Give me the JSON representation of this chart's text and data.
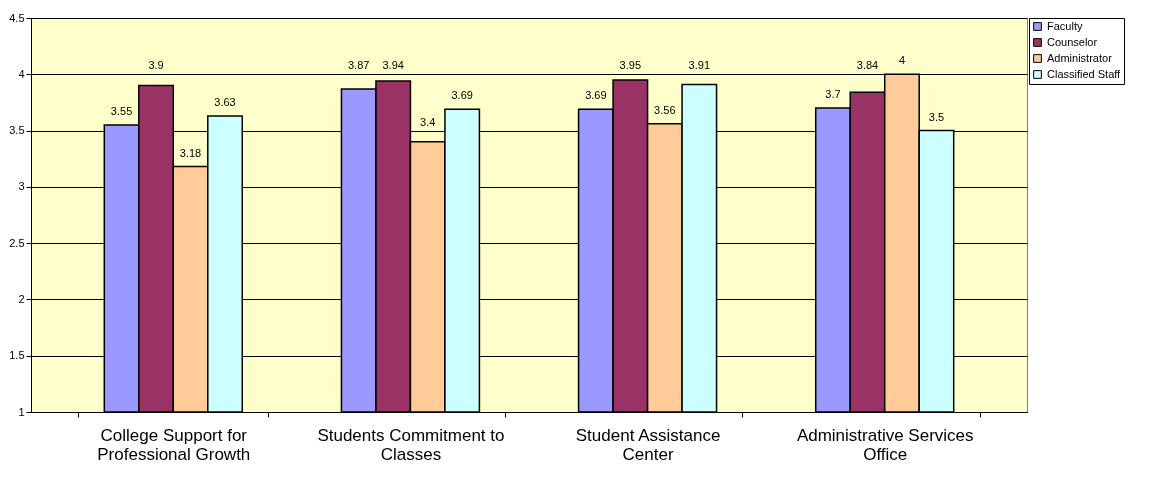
{
  "chart_data": {
    "type": "bar",
    "categories": [
      "College Support for Professional Growth",
      "Students Commitment to Classes",
      "Student Assistance Center",
      "Administrative Services Office"
    ],
    "series": [
      {
        "name": "Faculty",
        "color": "#9999ff",
        "values": [
          3.55,
          3.87,
          3.69,
          3.7
        ]
      },
      {
        "name": "Counselor",
        "color": "#993366",
        "values": [
          3.9,
          3.94,
          3.95,
          3.84
        ]
      },
      {
        "name": "Administrator",
        "color": "#ffcc99",
        "values": [
          3.18,
          3.4,
          3.56,
          4
        ]
      },
      {
        "name": "Classified Staff",
        "color": "#ccffff",
        "values": [
          3.63,
          3.69,
          3.91,
          3.5
        ]
      }
    ],
    "ylim": [
      1,
      4.5
    ],
    "yticks": [
      1,
      1.5,
      2,
      2.5,
      3,
      3.5,
      4,
      4.5
    ],
    "grid": "y",
    "legend": "right",
    "data_labels": true
  }
}
